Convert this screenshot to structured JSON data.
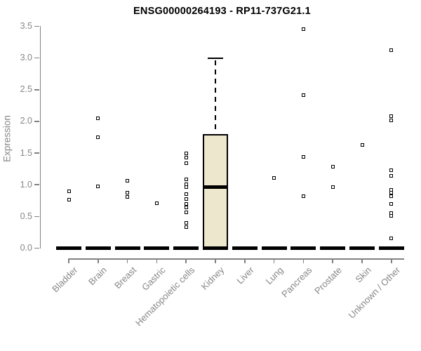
{
  "chart_data": {
    "type": "boxplot",
    "title": "ENSG00000264193 - RP11-737G21.1",
    "ylabel": "Expression",
    "xlabel": "",
    "ylim": [
      0.0,
      3.5
    ],
    "yticks": [
      "0.0",
      "0.5",
      "1.0",
      "1.5",
      "2.0",
      "2.5",
      "3.0",
      "3.5"
    ],
    "grid": false,
    "legend": null,
    "categories": [
      "Bladder",
      "Brain",
      "Breast",
      "Gastric",
      "Hematopoietic cells",
      "Kidney",
      "Liver",
      "Lung",
      "Pancreas",
      "Prostate",
      "Skin",
      "Unknown / Other"
    ],
    "boxes": [
      {
        "category": "Bladder",
        "q1": 0,
        "median": 0,
        "q3": 0,
        "whisker_low": 0,
        "whisker_high": 0,
        "outliers": [
          0.9,
          0.76
        ]
      },
      {
        "category": "Brain",
        "q1": 0,
        "median": 0,
        "q3": 0,
        "whisker_low": 0,
        "whisker_high": 0,
        "outliers": [
          2.05,
          1.75,
          0.98
        ]
      },
      {
        "category": "Breast",
        "q1": 0,
        "median": 0,
        "q3": 0,
        "whisker_low": 0,
        "whisker_high": 0,
        "outliers": [
          1.06,
          0.88,
          0.81
        ]
      },
      {
        "category": "Gastric",
        "q1": 0,
        "median": 0,
        "q3": 0,
        "whisker_low": 0,
        "whisker_high": 0,
        "outliers": [
          0.71
        ]
      },
      {
        "category": "Hematopoietic cells",
        "q1": 0,
        "median": 0,
        "q3": 0,
        "whisker_low": 0,
        "whisker_high": 0,
        "outliers": [
          1.5,
          1.43,
          1.34,
          1.09,
          1.01,
          0.96,
          0.85,
          0.78,
          0.7,
          0.64,
          0.56,
          0.4,
          0.33
        ]
      },
      {
        "category": "Kidney",
        "q1": 0,
        "median": 0.96,
        "q3": 1.8,
        "whisker_low": 0,
        "whisker_high": 3.0,
        "outliers": []
      },
      {
        "category": "Liver",
        "q1": 0,
        "median": 0,
        "q3": 0,
        "whisker_low": 0,
        "whisker_high": 0,
        "outliers": []
      },
      {
        "category": "Lung",
        "q1": 0,
        "median": 0,
        "q3": 0,
        "whisker_low": 0,
        "whisker_high": 0,
        "outliers": [
          1.11
        ]
      },
      {
        "category": "Pancreas",
        "q1": 0,
        "median": 0,
        "q3": 0,
        "whisker_low": 0,
        "whisker_high": 0,
        "outliers": [
          3.45,
          2.41,
          1.44,
          0.82
        ]
      },
      {
        "category": "Prostate",
        "q1": 0,
        "median": 0,
        "q3": 0,
        "whisker_low": 0,
        "whisker_high": 0,
        "outliers": [
          1.28,
          0.96
        ]
      },
      {
        "category": "Skin",
        "q1": 0,
        "median": 0,
        "q3": 0,
        "whisker_low": 0,
        "whisker_high": 0,
        "outliers": [
          1.63
        ]
      },
      {
        "category": "Unknown / Other",
        "q1": 0,
        "median": 0,
        "q3": 0,
        "whisker_low": 0,
        "whisker_high": 0,
        "outliers": [
          3.12,
          2.08,
          2.02,
          1.23,
          1.14,
          0.92,
          0.87,
          0.82,
          0.7,
          0.55,
          0.51,
          0.15
        ]
      }
    ],
    "colors": {
      "box_fill": "#EDE8CD",
      "box_border": "#000000",
      "median": "#000000",
      "outlier": "#000000",
      "axis": "#818181",
      "axis_text": "#878787",
      "title_text": "#000000",
      "background": "#FFFFFF"
    }
  }
}
